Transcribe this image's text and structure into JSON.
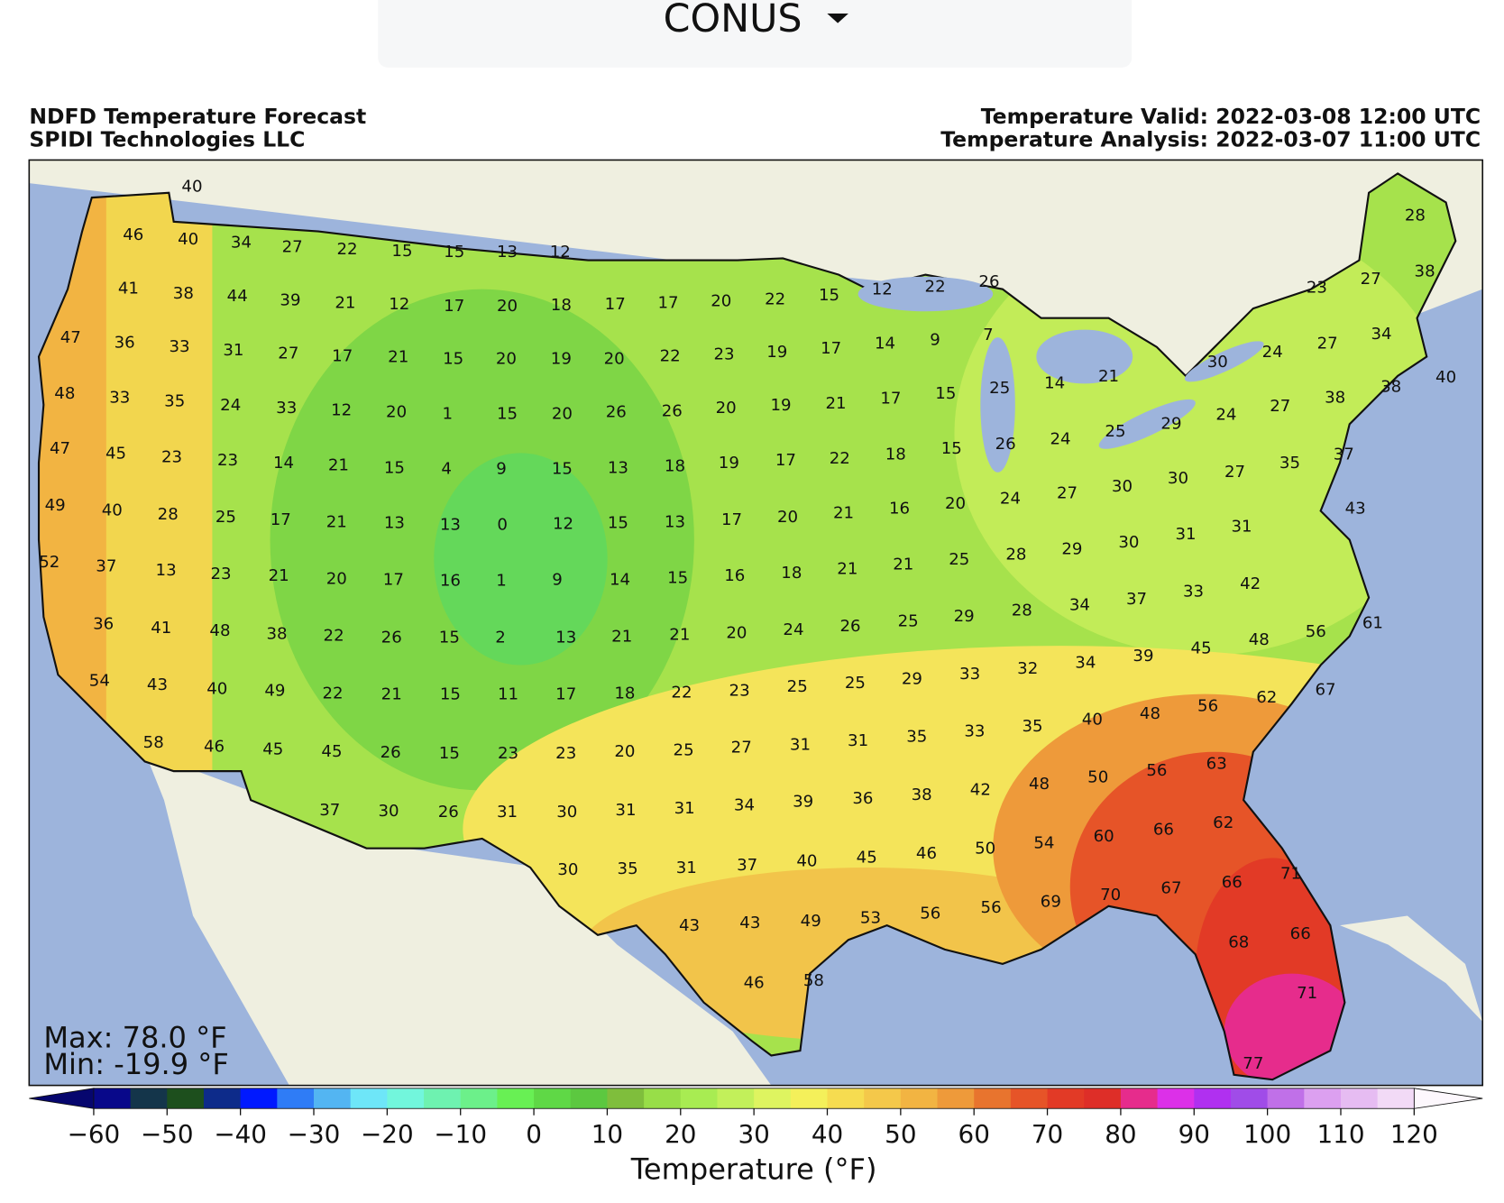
{
  "dropdown": {
    "label": "CONUS"
  },
  "map": {
    "title_left": [
      "NDFD Temperature Forecast",
      "SPIDI Technologies LLC"
    ],
    "title_right": [
      "Temperature Valid: 2022-03-08 12:00 UTC",
      "Temperature Analysis: 2022-03-07 11:00 UTC"
    ],
    "max_label": "Max: 78.0 °F",
    "min_label": "Min: -19.9 °F",
    "station_temps": [
      40,
      46,
      40,
      34,
      27,
      22,
      15,
      15,
      13,
      12,
      41,
      38,
      44,
      39,
      21,
      12,
      17,
      20,
      18,
      17,
      17,
      20,
      22,
      15,
      12,
      22,
      26,
      47,
      36,
      33,
      31,
      27,
      17,
      21,
      15,
      20,
      19,
      20,
      22,
      23,
      19,
      17,
      14,
      9,
      7,
      48,
      33,
      35,
      24,
      33,
      12,
      20,
      1,
      15,
      20,
      26,
      26,
      20,
      19,
      21,
      17,
      15,
      25,
      14,
      21,
      47,
      45,
      23,
      23,
      14,
      21,
      15,
      4,
      9,
      15,
      13,
      18,
      19,
      17,
      22,
      18,
      15,
      26,
      24,
      25,
      29,
      49,
      40,
      28,
      25,
      17,
      21,
      13,
      13,
      0,
      12,
      15,
      13,
      17,
      20,
      21,
      16,
      20,
      24,
      27,
      30,
      30,
      27,
      35,
      52,
      37,
      13,
      23,
      21,
      20,
      17,
      16,
      1,
      9,
      14,
      15,
      16,
      18,
      21,
      21,
      25,
      28,
      29,
      30,
      31,
      31,
      36,
      41,
      48,
      38,
      22,
      26,
      15,
      2,
      13,
      21,
      21,
      20,
      24,
      26,
      25,
      29,
      28,
      34,
      37,
      33,
      42,
      61,
      54,
      43,
      40,
      49,
      22,
      21,
      15,
      11,
      17,
      18,
      22,
      23,
      25,
      25,
      29,
      33,
      32,
      34,
      39,
      45,
      48,
      56,
      58,
      46,
      45,
      45,
      26,
      15,
      23,
      23,
      20,
      25,
      27,
      31,
      31,
      35,
      33,
      35,
      40,
      48,
      56,
      62,
      67,
      37,
      30,
      26,
      31,
      30,
      31,
      31,
      34,
      39,
      36,
      38,
      42,
      48,
      50,
      56,
      63,
      30,
      35,
      31,
      37,
      40,
      45,
      46,
      50,
      54,
      60,
      66,
      62,
      71,
      66,
      67,
      70,
      69,
      56,
      56,
      53,
      49,
      43,
      43,
      68,
      66,
      46,
      58,
      71,
      77,
      23,
      27,
      38,
      28,
      24,
      27,
      34,
      30,
      40,
      38,
      38,
      27,
      24,
      37,
      43
    ]
  },
  "colorbar": {
    "label": "Temperature (°F)",
    "lim": [
      -60,
      120
    ],
    "ticks": [
      {
        "value": -60,
        "label": "−60"
      },
      {
        "value": -50,
        "label": "−50"
      },
      {
        "value": -40,
        "label": "−40"
      },
      {
        "value": -30,
        "label": "−30"
      },
      {
        "value": -20,
        "label": "−20"
      },
      {
        "value": -10,
        "label": "−10"
      },
      0,
      10,
      20,
      30,
      40,
      50,
      60,
      70,
      80,
      90,
      100,
      110,
      120
    ],
    "under_color": "#06066e",
    "over_color": "#fdf8fd",
    "colors": [
      "#08088a",
      "#14354a",
      "#1d4f1d",
      "#0d2b8a",
      "#0019ff",
      "#2f7cf6",
      "#53b5f2",
      "#6ee6f8",
      "#72f6dc",
      "#6ef2b0",
      "#6cf08a",
      "#68f054",
      "#5fd846",
      "#5cc840",
      "#7fbe3c",
      "#98de48",
      "#a8ec52",
      "#c2f05a",
      "#def460",
      "#f4f05a",
      "#f6dc50",
      "#f4c84a",
      "#f2b442",
      "#ee9a3a",
      "#e8742e",
      "#e65428",
      "#e23a26",
      "#de2e28",
      "#e62c8c",
      "#dc30e8",
      "#b030f0",
      "#a04ce8",
      "#c070e8",
      "#dca0f0",
      "#e6bcf2",
      "#f2daf6"
    ]
  }
}
